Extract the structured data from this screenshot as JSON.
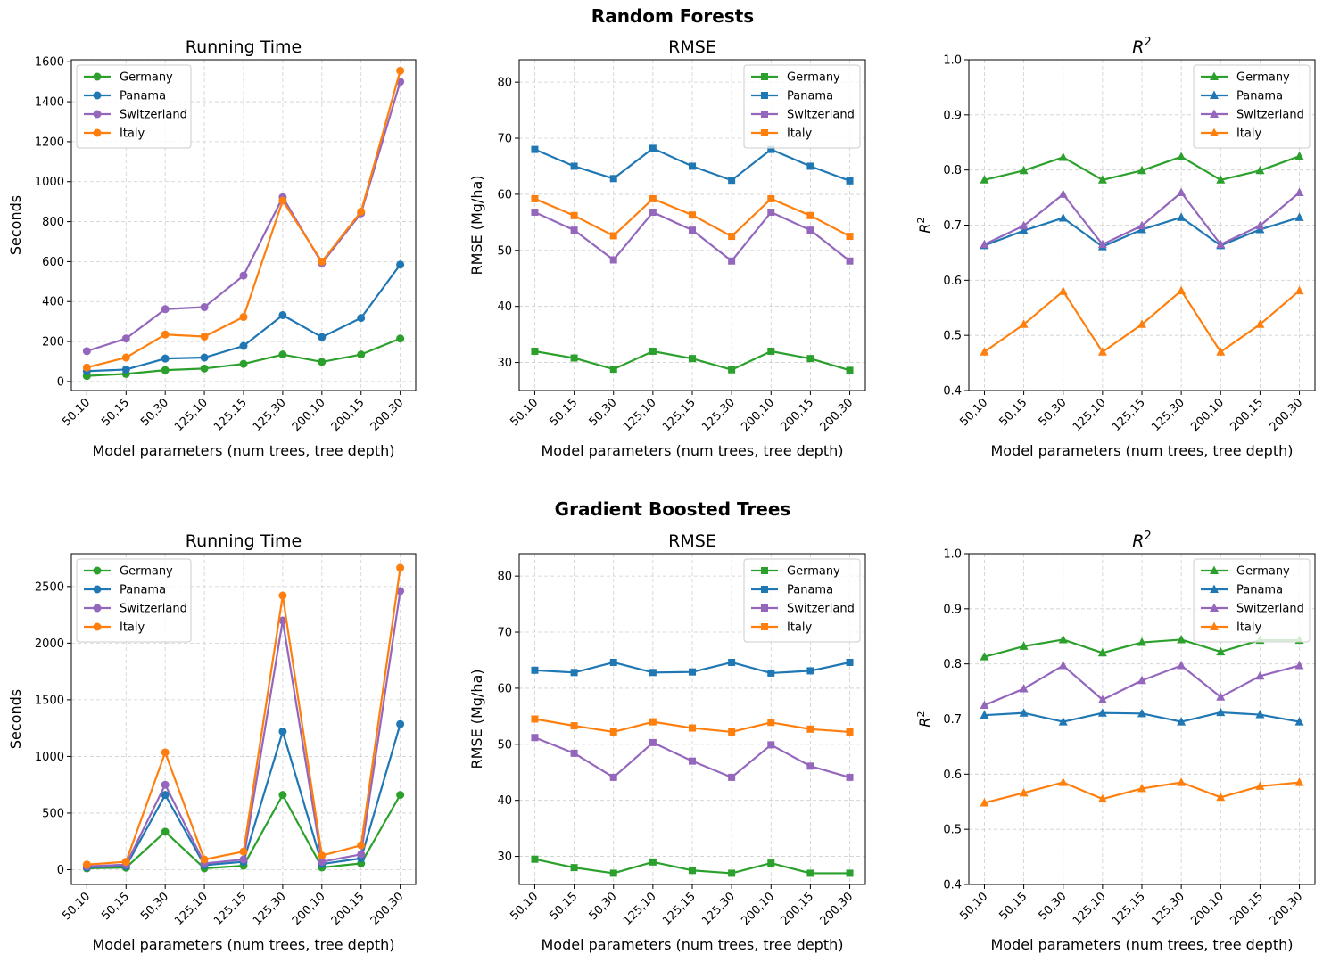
{
  "figure": {
    "sections": [
      {
        "title": "Random Forests"
      },
      {
        "title": "Gradient Boosted Trees"
      }
    ]
  },
  "colors": {
    "Germany": "#2ca02c",
    "Panama": "#1f77b4",
    "Switzerland": "#9467bd",
    "Italy": "#ff7f0e"
  },
  "chart_data": [
    {
      "type": "line",
      "section": "Random Forests",
      "title": "Running Time",
      "xlabel": "Model parameters (num trees, tree depth)",
      "ylabel": "Seconds",
      "categories": [
        "50,10",
        "50,15",
        "50,30",
        "125,10",
        "125,15",
        "125,30",
        "200,10",
        "200,15",
        "200,30"
      ],
      "ylim": [
        -45,
        1610
      ],
      "yticks": [
        0,
        200,
        400,
        600,
        800,
        1000,
        1200,
        1400,
        1600
      ],
      "marker": "circle",
      "grid": true,
      "legend": "upper-left",
      "series": [
        {
          "name": "Germany",
          "values": [
            28,
            38,
            57,
            65,
            88,
            135,
            98,
            135,
            215
          ]
        },
        {
          "name": "Panama",
          "values": [
            52,
            60,
            115,
            120,
            178,
            332,
            222,
            318,
            585
          ]
        },
        {
          "name": "Switzerland",
          "values": [
            152,
            215,
            362,
            372,
            530,
            922,
            592,
            842,
            1500
          ]
        },
        {
          "name": "Italy",
          "values": [
            70,
            120,
            235,
            225,
            323,
            905,
            600,
            850,
            1555
          ]
        }
      ]
    },
    {
      "type": "line",
      "section": "Random Forests",
      "title": "RMSE",
      "xlabel": "Model parameters (num trees, tree depth)",
      "ylabel": "RMSE (Mg/ha)",
      "categories": [
        "50,10",
        "50,15",
        "50,30",
        "125,10",
        "125,15",
        "125,30",
        "200,10",
        "200,15",
        "200,30"
      ],
      "ylim": [
        25,
        84
      ],
      "yticks": [
        30,
        40,
        50,
        60,
        70,
        80
      ],
      "marker": "square",
      "grid": true,
      "legend": "upper-right",
      "series": [
        {
          "name": "Germany",
          "values": [
            32,
            30.8,
            28.8,
            32,
            30.7,
            28.7,
            32,
            30.7,
            28.6
          ]
        },
        {
          "name": "Panama",
          "values": [
            68,
            65,
            62.8,
            68.2,
            65,
            62.5,
            68,
            65,
            62.4
          ]
        },
        {
          "name": "Switzerland",
          "values": [
            56.8,
            53.6,
            48.3,
            56.8,
            53.6,
            48.1,
            56.8,
            53.6,
            48.1
          ]
        },
        {
          "name": "Italy",
          "values": [
            59.2,
            56.2,
            52.6,
            59.2,
            56.3,
            52.5,
            59.2,
            56.2,
            52.5
          ]
        }
      ]
    },
    {
      "type": "line",
      "section": "Random Forests",
      "title": "R²",
      "xlabel": "Model parameters (num trees, tree depth)",
      "ylabel": "R²",
      "categories": [
        "50,10",
        "50,15",
        "50,30",
        "125,10",
        "125,15",
        "125,30",
        "200,10",
        "200,15",
        "200,30"
      ],
      "ylim": [
        0.4,
        1.0
      ],
      "yticks": [
        0.4,
        0.5,
        0.6,
        0.7,
        0.8,
        0.9,
        1.0
      ],
      "marker": "triangle",
      "grid": true,
      "legend": "upper-right",
      "series": [
        {
          "name": "Germany",
          "values": [
            0.782,
            0.799,
            0.823,
            0.782,
            0.799,
            0.824,
            0.782,
            0.799,
            0.825
          ]
        },
        {
          "name": "Panama",
          "values": [
            0.663,
            0.69,
            0.713,
            0.661,
            0.692,
            0.714,
            0.663,
            0.692,
            0.714
          ]
        },
        {
          "name": "Switzerland",
          "values": [
            0.665,
            0.699,
            0.756,
            0.665,
            0.699,
            0.759,
            0.665,
            0.699,
            0.759
          ]
        },
        {
          "name": "Italy",
          "values": [
            0.47,
            0.52,
            0.58,
            0.47,
            0.52,
            0.581,
            0.47,
            0.52,
            0.581
          ]
        }
      ]
    },
    {
      "type": "line",
      "section": "Gradient Boosted Trees",
      "title": "Running Time",
      "xlabel": "Model parameters (num trees, tree depth)",
      "ylabel": "Seconds",
      "categories": [
        "50,10",
        "50,15",
        "50,30",
        "125,10",
        "125,15",
        "125,30",
        "200,10",
        "200,15",
        "200,30"
      ],
      "ylim": [
        -130,
        2790
      ],
      "yticks": [
        0,
        500,
        1000,
        1500,
        2000,
        2500
      ],
      "marker": "circle",
      "grid": true,
      "legend": "upper-left",
      "series": [
        {
          "name": "Germany",
          "values": [
            12,
            18,
            335,
            12,
            35,
            660,
            20,
            55,
            660
          ]
        },
        {
          "name": "Panama",
          "values": [
            20,
            30,
            660,
            40,
            70,
            1220,
            50,
            100,
            1285
          ]
        },
        {
          "name": "Switzerland",
          "values": [
            30,
            45,
            750,
            55,
            90,
            2200,
            70,
            135,
            2460
          ]
        },
        {
          "name": "Italy",
          "values": [
            45,
            70,
            1035,
            90,
            160,
            2420,
            125,
            215,
            2665
          ]
        }
      ]
    },
    {
      "type": "line",
      "section": "Gradient Boosted Trees",
      "title": "RMSE",
      "xlabel": "Model parameters (num trees, tree depth)",
      "ylabel": "RMSE (Mg/ha)",
      "categories": [
        "50,10",
        "50,15",
        "50,30",
        "125,10",
        "125,15",
        "125,30",
        "200,10",
        "200,15",
        "200,30"
      ],
      "ylim": [
        25,
        84
      ],
      "yticks": [
        30,
        40,
        50,
        60,
        70,
        80
      ],
      "marker": "square",
      "grid": true,
      "legend": "upper-right",
      "series": [
        {
          "name": "Germany",
          "values": [
            29.5,
            28,
            27,
            29,
            27.5,
            27,
            28.8,
            27,
            27
          ]
        },
        {
          "name": "Panama",
          "values": [
            63.2,
            62.8,
            64.6,
            62.8,
            62.9,
            64.6,
            62.7,
            63.1,
            64.6
          ]
        },
        {
          "name": "Switzerland",
          "values": [
            51.2,
            48.4,
            44.1,
            50.3,
            47,
            44.1,
            49.9,
            46.1,
            44.1
          ]
        },
        {
          "name": "Italy",
          "values": [
            54.5,
            53.3,
            52.2,
            54,
            52.9,
            52.2,
            53.9,
            52.7,
            52.2
          ]
        }
      ]
    },
    {
      "type": "line",
      "section": "Gradient Boosted Trees",
      "title": "R²",
      "xlabel": "Model parameters (num trees, tree depth)",
      "ylabel": "R²",
      "categories": [
        "50,10",
        "50,15",
        "50,30",
        "125,10",
        "125,15",
        "125,30",
        "200,10",
        "200,15",
        "200,30"
      ],
      "ylim": [
        0.4,
        1.0
      ],
      "yticks": [
        0.4,
        0.5,
        0.6,
        0.7,
        0.8,
        0.9,
        1.0
      ],
      "marker": "triangle",
      "grid": true,
      "legend": "upper-right",
      "series": [
        {
          "name": "Germany",
          "values": [
            0.813,
            0.832,
            0.844,
            0.82,
            0.839,
            0.844,
            0.822,
            0.843,
            0.843
          ]
        },
        {
          "name": "Panama",
          "values": [
            0.707,
            0.711,
            0.695,
            0.711,
            0.71,
            0.695,
            0.712,
            0.708,
            0.695
          ]
        },
        {
          "name": "Switzerland",
          "values": [
            0.725,
            0.755,
            0.797,
            0.735,
            0.77,
            0.797,
            0.74,
            0.778,
            0.797
          ]
        },
        {
          "name": "Italy",
          "values": [
            0.548,
            0.566,
            0.585,
            0.555,
            0.574,
            0.585,
            0.558,
            0.578,
            0.585
          ]
        }
      ]
    }
  ]
}
